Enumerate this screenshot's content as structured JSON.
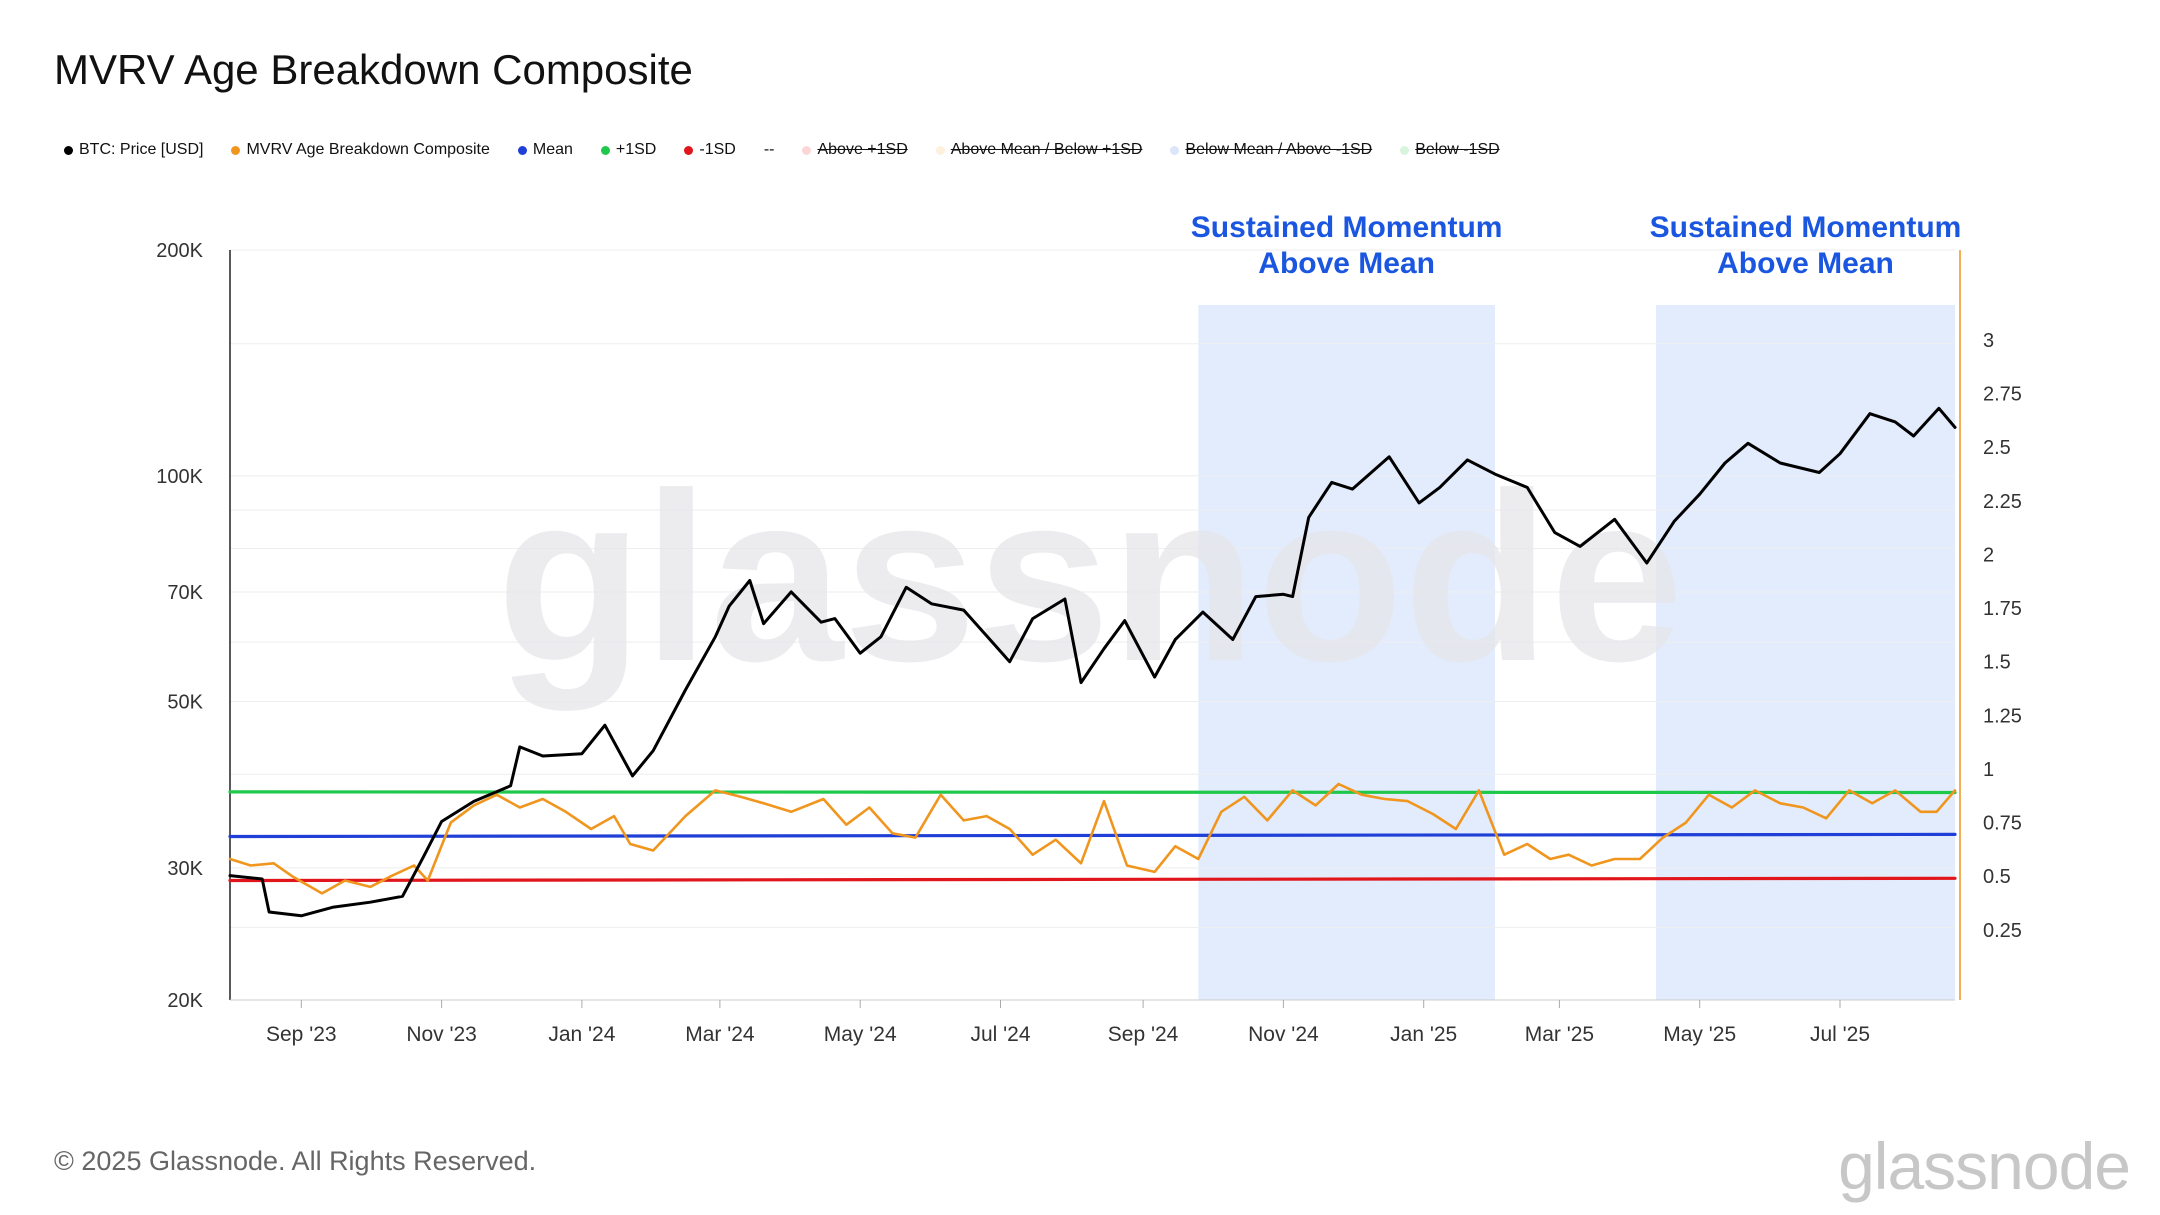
{
  "title": "MVRV Age Breakdown Composite",
  "legend": [
    {
      "label": "BTC: Price [USD]",
      "color": "#000000",
      "active": true
    },
    {
      "label": "MVRV Age Breakdown Composite",
      "color": "#f0961e",
      "active": true
    },
    {
      "label": "Mean",
      "color": "#1f3fd6",
      "active": true
    },
    {
      "label": "+1SD",
      "color": "#1ec84a",
      "active": true
    },
    {
      "label": "-1SD",
      "color": "#e0161c",
      "active": true
    },
    {
      "label": "--",
      "color": "",
      "active": true
    },
    {
      "label": "Above +1SD",
      "color": "#fbd6d6",
      "active": false
    },
    {
      "label": "Above Mean / Below +1SD",
      "color": "#fdf0dc",
      "active": false
    },
    {
      "label": "Below Mean / Above -1SD",
      "color": "#dbe6fb",
      "active": false
    },
    {
      "label": "Below -1SD",
      "color": "#d6f5dc",
      "active": false
    }
  ],
  "footer": {
    "copyright": "© 2025 Glassnode. All Rights Reserved.",
    "logo": "glassnode"
  },
  "watermark": "glassnode",
  "chart_data": {
    "type": "line",
    "title": "MVRV Age Breakdown Composite",
    "x_range": [
      "2023-08-01",
      "2025-08-20"
    ],
    "x_ticks": [
      "Sep '23",
      "Nov '23",
      "Jan '24",
      "Mar '24",
      "May '24",
      "Jul '24",
      "Sep '24",
      "Nov '24",
      "Jan '25",
      "Mar '25",
      "May '25",
      "Jul '25"
    ],
    "y_left": {
      "scale": "log",
      "range": [
        20000,
        200000
      ],
      "ticks": [
        {
          "value": 20000,
          "label": "20K"
        },
        {
          "value": 30000,
          "label": "30K"
        },
        {
          "value": 50000,
          "label": "50K"
        },
        {
          "value": 70000,
          "label": "70K"
        },
        {
          "value": 100000,
          "label": "100K"
        },
        {
          "value": 200000,
          "label": "200K"
        }
      ]
    },
    "y_right": {
      "scale": "linear",
      "range": [
        0.1,
        3.2
      ],
      "ticks": [
        "0.25",
        "0.5",
        "0.75",
        "1",
        "1.25",
        "1.5",
        "1.75",
        "2",
        "2.25",
        "2.5",
        "2.75",
        "3"
      ]
    },
    "grid": "horizontal",
    "annotations": [
      {
        "label_lines": [
          "Sustained Momentum",
          "Above Mean"
        ],
        "start": "2024-09-25",
        "end": "2025-02-01",
        "color": "#1a56e0",
        "fill": "#e3ecfd"
      },
      {
        "label_lines": [
          "Sustained Momentum",
          "Above Mean"
        ],
        "start": "2025-04-12",
        "end": "2025-08-20",
        "color": "#1a56e0",
        "fill": "#e3ecfd"
      }
    ],
    "series": [
      {
        "name": "BTC: Price [USD]",
        "axis": "left",
        "color": "#000000",
        "x": [
          "2023-08-01",
          "2023-08-15",
          "2023-08-18",
          "2023-09-01",
          "2023-09-15",
          "2023-10-01",
          "2023-10-15",
          "2023-10-24",
          "2023-11-01",
          "2023-11-15",
          "2023-12-01",
          "2023-12-05",
          "2023-12-15",
          "2024-01-01",
          "2024-01-11",
          "2024-01-23",
          "2024-02-01",
          "2024-02-15",
          "2024-02-28",
          "2024-03-05",
          "2024-03-14",
          "2024-03-20",
          "2024-04-01",
          "2024-04-14",
          "2024-04-20",
          "2024-05-01",
          "2024-05-10",
          "2024-05-21",
          "2024-06-01",
          "2024-06-15",
          "2024-07-05",
          "2024-07-15",
          "2024-07-29",
          "2024-08-05",
          "2024-08-15",
          "2024-08-24",
          "2024-09-06",
          "2024-09-15",
          "2024-09-27",
          "2024-10-10",
          "2024-10-20",
          "2024-11-01",
          "2024-11-05",
          "2024-11-12",
          "2024-11-22",
          "2024-12-01",
          "2024-12-17",
          "2024-12-30",
          "2025-01-08",
          "2025-01-20",
          "2025-02-01",
          "2025-02-15",
          "2025-02-27",
          "2025-03-10",
          "2025-03-25",
          "2025-04-08",
          "2025-04-20",
          "2025-05-01",
          "2025-05-12",
          "2025-05-22",
          "2025-06-05",
          "2025-06-22",
          "2025-07-01",
          "2025-07-14",
          "2025-07-25",
          "2025-08-02",
          "2025-08-13",
          "2025-08-20"
        ],
        "values": [
          29300,
          29000,
          26200,
          25900,
          26600,
          27000,
          27500,
          31000,
          34600,
          36800,
          38600,
          43500,
          42300,
          42600,
          46500,
          39800,
          43000,
          51800,
          61000,
          67000,
          72500,
          63500,
          70000,
          63800,
          64500,
          58000,
          61000,
          71000,
          67500,
          66200,
          56500,
          64500,
          68500,
          53000,
          58800,
          64100,
          53900,
          60500,
          65800,
          60500,
          69000,
          69500,
          69000,
          88000,
          98000,
          96000,
          106000,
          92000,
          96500,
          105000,
          100500,
          96500,
          84000,
          80500,
          87500,
          76500,
          87000,
          94500,
          104000,
          110500,
          104000,
          101000,
          107000,
          121000,
          118000,
          113000,
          123000,
          116000
        ]
      },
      {
        "name": "MVRV Age Breakdown Composite",
        "axis": "right",
        "color": "#f0961e",
        "x": [
          "2023-08-01",
          "2023-08-10",
          "2023-08-20",
          "2023-08-28",
          "2023-09-10",
          "2023-09-20",
          "2023-10-01",
          "2023-10-10",
          "2023-10-20",
          "2023-10-26",
          "2023-11-05",
          "2023-11-15",
          "2023-11-25",
          "2023-12-05",
          "2023-12-15",
          "2023-12-25",
          "2024-01-05",
          "2024-01-15",
          "2024-01-22",
          "2024-02-01",
          "2024-02-15",
          "2024-02-28",
          "2024-03-10",
          "2024-03-20",
          "2024-04-01",
          "2024-04-15",
          "2024-04-25",
          "2024-05-05",
          "2024-05-15",
          "2024-05-25",
          "2024-06-05",
          "2024-06-15",
          "2024-06-25",
          "2024-07-05",
          "2024-07-15",
          "2024-07-25",
          "2024-08-05",
          "2024-08-15",
          "2024-08-25",
          "2024-09-06",
          "2024-09-15",
          "2024-09-25",
          "2024-10-05",
          "2024-10-15",
          "2024-10-25",
          "2024-11-05",
          "2024-11-15",
          "2024-11-25",
          "2024-12-05",
          "2024-12-15",
          "2024-12-25",
          "2025-01-05",
          "2025-01-15",
          "2025-01-25",
          "2025-02-05",
          "2025-02-15",
          "2025-02-25",
          "2025-03-05",
          "2025-03-15",
          "2025-03-25",
          "2025-04-05",
          "2025-04-15",
          "2025-04-25",
          "2025-05-05",
          "2025-05-15",
          "2025-05-25",
          "2025-06-05",
          "2025-06-15",
          "2025-06-25",
          "2025-07-05",
          "2025-07-15",
          "2025-07-25",
          "2025-08-05",
          "2025-08-12",
          "2025-08-20"
        ],
        "values": [
          0.58,
          0.55,
          0.56,
          0.5,
          0.42,
          0.48,
          0.45,
          0.5,
          0.55,
          0.48,
          0.75,
          0.83,
          0.88,
          0.82,
          0.86,
          0.8,
          0.72,
          0.78,
          0.65,
          0.62,
          0.78,
          0.9,
          0.87,
          0.84,
          0.8,
          0.86,
          0.74,
          0.82,
          0.7,
          0.68,
          0.88,
          0.76,
          0.78,
          0.72,
          0.6,
          0.67,
          0.56,
          0.85,
          0.55,
          0.52,
          0.64,
          0.58,
          0.8,
          0.87,
          0.76,
          0.9,
          0.83,
          0.93,
          0.88,
          0.86,
          0.85,
          0.79,
          0.72,
          0.9,
          0.6,
          0.65,
          0.58,
          0.6,
          0.55,
          0.58,
          0.58,
          0.68,
          0.75,
          0.88,
          0.82,
          0.9,
          0.84,
          0.82,
          0.77,
          0.9,
          0.84,
          0.9,
          0.8,
          0.8,
          0.9
        ]
      },
      {
        "name": "Mean",
        "axis": "right",
        "color": "#1f3fd6",
        "x": [
          "2023-08-01",
          "2025-08-20"
        ],
        "values": [
          0.685,
          0.695
        ]
      },
      {
        "name": "+1SD",
        "axis": "right",
        "color": "#1ec84a",
        "x": [
          "2023-08-01",
          "2025-08-20"
        ],
        "values": [
          0.893,
          0.89
        ]
      },
      {
        "name": "-1SD",
        "axis": "right",
        "color": "#e0161c",
        "x": [
          "2023-08-01",
          "2025-08-20"
        ],
        "values": [
          0.48,
          0.49
        ]
      }
    ]
  }
}
